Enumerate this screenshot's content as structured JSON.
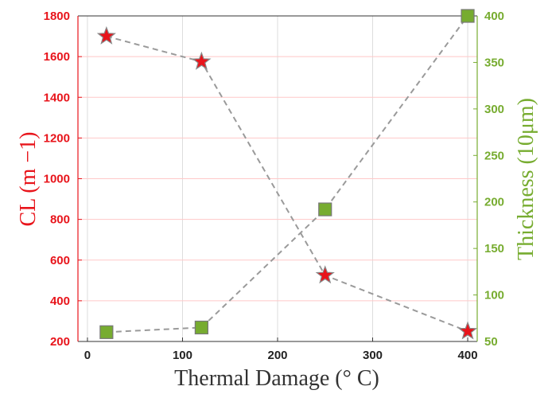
{
  "chart_data": {
    "type": "scatter",
    "title": "",
    "xlabel": "Thermal Damage (° C)",
    "ylabel_left": "CL (m −1)",
    "ylabel_right": "Thickness (10μm)",
    "xlim": [
      -10,
      410
    ],
    "ylim_left": [
      200,
      1800
    ],
    "ylim_right": [
      50,
      400
    ],
    "x_ticks": [
      0,
      100,
      200,
      300,
      400
    ],
    "y_ticks_left": [
      200,
      400,
      600,
      800,
      1000,
      1200,
      1400,
      1600,
      1800
    ],
    "y_ticks_right": [
      50,
      100,
      150,
      200,
      250,
      300,
      350,
      400
    ],
    "grid": true,
    "colors": {
      "left_axis": "#e8141b",
      "right_axis": "#77ac30",
      "connector": "#9a9a9a",
      "grid": "#ffc8c8"
    },
    "series": [
      {
        "axis": "left",
        "marker": "star",
        "color": "#e8141b",
        "x": [
          20,
          120,
          250,
          400
        ],
        "y": [
          1700,
          1575,
          525,
          250
        ]
      },
      {
        "axis": "right",
        "marker": "square",
        "color": "#77ac30",
        "x": [
          20,
          120,
          250,
          400
        ],
        "y": [
          60,
          65,
          192,
          400
        ]
      }
    ]
  }
}
